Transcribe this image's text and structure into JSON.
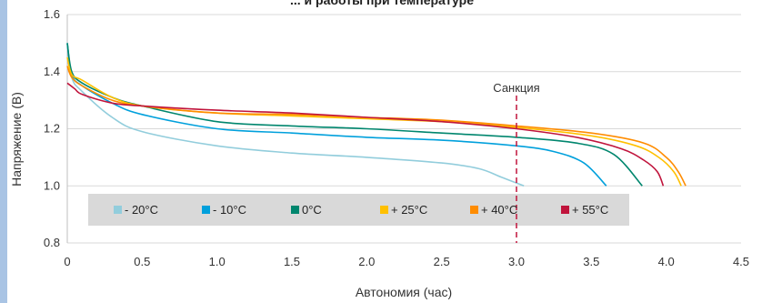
{
  "chart_data": {
    "type": "line",
    "title": "... и работы при температуре",
    "xlabel": "Автономия (час)",
    "ylabel": "Напряжение (В)",
    "xlim": [
      0,
      4.5
    ],
    "ylim": [
      0.8,
      1.6
    ],
    "x_ticks": [
      "0",
      "0.5",
      "1.0",
      "1.5",
      "2.0",
      "2.5",
      "3.0",
      "3.5",
      "4.0",
      "4.5"
    ],
    "y_ticks": [
      "0.8",
      "1.0",
      "1.2",
      "1.4",
      "1.6"
    ],
    "grid": true,
    "legend_position": "bottom-inside",
    "annotation": {
      "label": "Санкция",
      "x": 3.0
    },
    "series": [
      {
        "name": "- 20°C",
        "color": "#92cddc",
        "points": [
          [
            0,
            1.5
          ],
          [
            0.03,
            1.38
          ],
          [
            0.1,
            1.33
          ],
          [
            0.3,
            1.24
          ],
          [
            0.5,
            1.19
          ],
          [
            1.0,
            1.14
          ],
          [
            1.5,
            1.115
          ],
          [
            2.0,
            1.1
          ],
          [
            2.5,
            1.08
          ],
          [
            2.75,
            1.06
          ],
          [
            2.9,
            1.03
          ],
          [
            3.05,
            1.0
          ]
        ]
      },
      {
        "name": "- 10°C",
        "color": "#00a0dc",
        "points": [
          [
            0,
            1.5
          ],
          [
            0.03,
            1.39
          ],
          [
            0.1,
            1.35
          ],
          [
            0.3,
            1.29
          ],
          [
            0.5,
            1.25
          ],
          [
            1.0,
            1.2
          ],
          [
            1.5,
            1.185
          ],
          [
            2.0,
            1.17
          ],
          [
            2.5,
            1.16
          ],
          [
            3.0,
            1.14
          ],
          [
            3.25,
            1.12
          ],
          [
            3.45,
            1.08
          ],
          [
            3.6,
            1.0
          ]
        ]
      },
      {
        "name": "0°C",
        "color": "#00866e",
        "points": [
          [
            0,
            1.5
          ],
          [
            0.03,
            1.4
          ],
          [
            0.1,
            1.36
          ],
          [
            0.3,
            1.31
          ],
          [
            0.5,
            1.28
          ],
          [
            1.0,
            1.225
          ],
          [
            1.5,
            1.21
          ],
          [
            2.0,
            1.2
          ],
          [
            2.5,
            1.185
          ],
          [
            3.0,
            1.17
          ],
          [
            3.4,
            1.15
          ],
          [
            3.65,
            1.11
          ],
          [
            3.84,
            1.0
          ]
        ]
      },
      {
        "name": "+ 25°C",
        "color": "#ffc000",
        "points": [
          [
            0,
            1.45
          ],
          [
            0.03,
            1.39
          ],
          [
            0.1,
            1.37
          ],
          [
            0.3,
            1.31
          ],
          [
            0.5,
            1.28
          ],
          [
            1.0,
            1.255
          ],
          [
            1.5,
            1.245
          ],
          [
            2.0,
            1.235
          ],
          [
            2.5,
            1.225
          ],
          [
            3.0,
            1.205
          ],
          [
            3.5,
            1.175
          ],
          [
            3.8,
            1.14
          ],
          [
            3.95,
            1.1
          ],
          [
            4.05,
            1.05
          ],
          [
            4.1,
            1.0
          ]
        ]
      },
      {
        "name": "+ 40°C",
        "color": "#ff8c00",
        "points": [
          [
            0,
            1.42
          ],
          [
            0.03,
            1.38
          ],
          [
            0.1,
            1.35
          ],
          [
            0.3,
            1.3
          ],
          [
            0.5,
            1.28
          ],
          [
            1.0,
            1.255
          ],
          [
            1.5,
            1.25
          ],
          [
            2.0,
            1.24
          ],
          [
            2.5,
            1.23
          ],
          [
            3.0,
            1.21
          ],
          [
            3.5,
            1.185
          ],
          [
            3.85,
            1.15
          ],
          [
            4.0,
            1.1
          ],
          [
            4.08,
            1.05
          ],
          [
            4.13,
            1.0
          ]
        ]
      },
      {
        "name": "+ 55°C",
        "color": "#c0143c",
        "points": [
          [
            0,
            1.36
          ],
          [
            0.05,
            1.34
          ],
          [
            0.1,
            1.32
          ],
          [
            0.3,
            1.29
          ],
          [
            0.5,
            1.28
          ],
          [
            1.0,
            1.265
          ],
          [
            1.5,
            1.255
          ],
          [
            2.0,
            1.24
          ],
          [
            2.5,
            1.225
          ],
          [
            3.0,
            1.2
          ],
          [
            3.4,
            1.17
          ],
          [
            3.7,
            1.13
          ],
          [
            3.85,
            1.09
          ],
          [
            3.94,
            1.05
          ],
          [
            3.98,
            1.0
          ]
        ]
      }
    ]
  }
}
